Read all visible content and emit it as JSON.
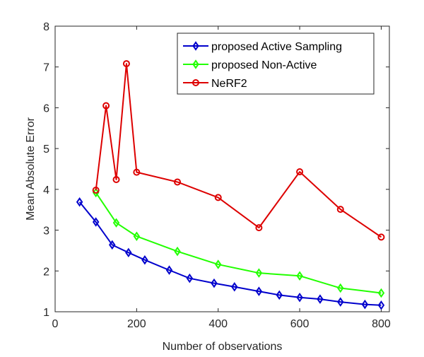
{
  "chart_data": {
    "type": "line",
    "title": "",
    "xlabel": "Number of observations",
    "ylabel": "Mean Absolute Error",
    "xlim": [
      0,
      820
    ],
    "ylim": [
      1,
      8
    ],
    "xticks": [
      0,
      200,
      400,
      600,
      800
    ],
    "yticks": [
      1,
      2,
      3,
      4,
      5,
      6,
      7,
      8
    ],
    "xtick_labels": [
      "0",
      "200",
      "400",
      "600",
      "800"
    ],
    "ytick_labels": [
      "1",
      "2",
      "3",
      "4",
      "5",
      "6",
      "7",
      "8"
    ],
    "grid": false,
    "legend_position": "top-right",
    "series": [
      {
        "name": "proposed Active Sampling",
        "color": "#0000cc",
        "marker": "diamond",
        "x": [
          60,
          100,
          140,
          180,
          220,
          280,
          330,
          390,
          440,
          500,
          550,
          600,
          650,
          700,
          760,
          800
        ],
        "y": [
          3.69,
          3.2,
          2.64,
          2.45,
          2.27,
          2.02,
          1.82,
          1.7,
          1.61,
          1.5,
          1.41,
          1.35,
          1.31,
          1.24,
          1.18,
          1.16
        ]
      },
      {
        "name": "proposed Non-Active",
        "color": "#22ff00",
        "marker": "diamond",
        "x": [
          100,
          150,
          200,
          300,
          400,
          500,
          600,
          700,
          800
        ],
        "y": [
          3.92,
          3.18,
          2.85,
          2.48,
          2.16,
          1.95,
          1.88,
          1.58,
          1.46
        ]
      },
      {
        "name": "NeRF2",
        "color": "#dd0000",
        "marker": "circle",
        "x": [
          100,
          125,
          150,
          175,
          200,
          300,
          400,
          500,
          600,
          700,
          800
        ],
        "y": [
          3.98,
          6.05,
          4.24,
          7.08,
          4.42,
          4.18,
          3.8,
          3.06,
          4.43,
          3.51,
          2.83
        ]
      }
    ]
  }
}
